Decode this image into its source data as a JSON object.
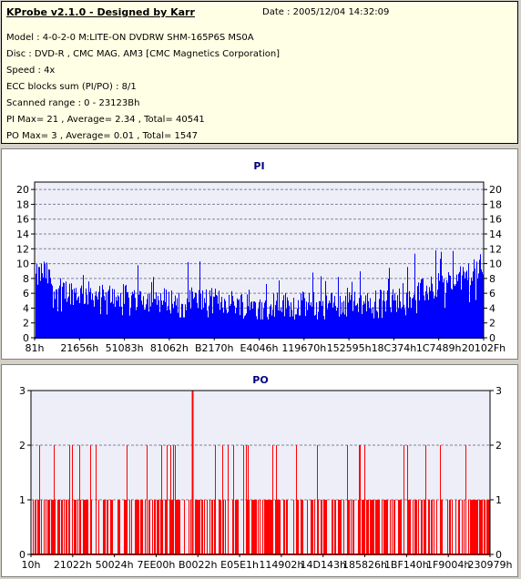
{
  "header": {
    "title": "KProbe v2.1.0 - Designed by Karr",
    "date": "Date : 2005/12/04 14:32:09",
    "lines": [
      "Model : 4-0-2-0 M:LITE-ON DVDRW SHM-165P6S MS0A",
      "Disc : DVD-R , CMC MAG. AM3 [CMC Magnetics Corporation]",
      "Speed : 4x",
      "ECC blocks sum (PI/PO) : 8/1",
      "Scanned range : 0 - 23123Bh",
      "PI Max= 21 , Average= 2.34 , Total= 40541",
      "PO Max= 3 , Average= 0.01 , Total= 1547"
    ]
  },
  "colors": {
    "pi_series": "#0000ff",
    "po_series": "#ff0000",
    "plot_bg": "#eeeef8",
    "grid": "#8080a0"
  },
  "chart_data": [
    {
      "type": "bar",
      "title": "PI",
      "ylim": [
        0,
        21
      ],
      "yticks": [
        0,
        2,
        4,
        6,
        8,
        10,
        12,
        14,
        16,
        18,
        20
      ],
      "xtick_labels": [
        "81h",
        "21656h",
        "51083h",
        "81062h",
        "B2170h",
        "E4046h",
        "119670h",
        "152595h",
        "18C374h",
        "1C7489h",
        "20102Fh"
      ],
      "grid": true,
      "profile": {
        "x": [
          0,
          0.02,
          0.05,
          0.1,
          0.2,
          0.3,
          0.4,
          0.5,
          0.6,
          0.7,
          0.8,
          0.85,
          0.9,
          0.95,
          1.0
        ],
        "y": [
          8,
          9,
          6.5,
          6,
          5.5,
          5,
          5,
          4.5,
          4.5,
          4.5,
          5,
          6,
          7,
          8,
          10
        ]
      }
    },
    {
      "type": "bar",
      "title": "PO",
      "ylim": [
        0,
        3
      ],
      "yticks": [
        0,
        1,
        2,
        3
      ],
      "xtick_labels": [
        "10h",
        "21022h",
        "50024h",
        "7EE00h",
        "B0022h",
        "E05E1h",
        "114902h",
        "14D143h",
        "185826h",
        "1BF140h",
        "1F9004h",
        "230979h"
      ],
      "grid": true,
      "max_marker": {
        "x_fraction": 0.352,
        "value": 3
      }
    }
  ]
}
